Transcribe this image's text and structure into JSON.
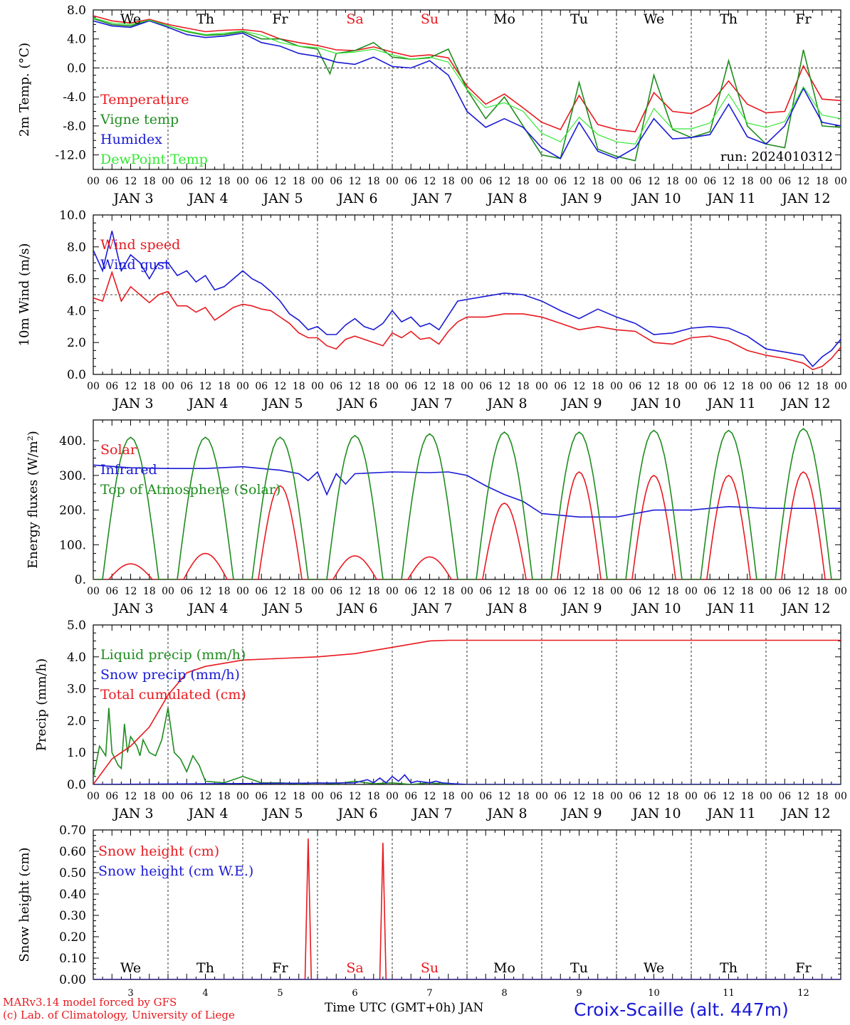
{
  "footer": {
    "credit1": "MARv3.14 model forced by GFS",
    "credit2": "(c) Lab. of Climatology, University of Liege",
    "xlabel": "Time UTC (GMT+0h) JAN",
    "station": "Croix-Scaille (alt. 447m)"
  },
  "run_label": "run: 2024010312",
  "days": {
    "weekday_labels": [
      "We",
      "Th",
      "Fr",
      "Sa",
      "Su",
      "Mo",
      "Tu",
      "We",
      "Th",
      "Fr"
    ],
    "weekend_flags": [
      false,
      false,
      false,
      true,
      true,
      false,
      false,
      false,
      false,
      false
    ],
    "date_labels": [
      "JAN  3",
      "JAN  4",
      "JAN  5",
      "JAN  6",
      "JAN  7",
      "JAN  8",
      "JAN  9",
      "JAN 10",
      "JAN 11",
      "JAN 12"
    ],
    "short_dates": [
      "3",
      "4",
      "5",
      "6",
      "7",
      "8",
      "9",
      "10",
      "11",
      "12"
    ],
    "hour_ticks": [
      "00",
      "06",
      "12",
      "18"
    ],
    "last_tick": "00"
  },
  "colors": {
    "red": "#e8191f",
    "green": "#1f8c1f",
    "blue": "#1a1ad6",
    "lightgreen": "#33e833",
    "weekend": "#e8191f",
    "grid": "#000000"
  },
  "chart_data": [
    {
      "type": "line",
      "ylabel": "2m Temp. (°C)",
      "ylim": [
        -14,
        8
      ],
      "yticks": [
        "8.0",
        "4.0",
        "0.0",
        "-4.0",
        "-8.0",
        "-12.0"
      ],
      "yticks_values": [
        8,
        4,
        0,
        -4,
        -8,
        -12
      ],
      "x_unit": "hours since JAN 3 00 UTC",
      "hline": 0,
      "series": [
        {
          "name": "Temperature",
          "color": "red",
          "x": [
            0,
            6,
            12,
            18,
            24,
            30,
            36,
            42,
            48,
            54,
            60,
            66,
            72,
            78,
            84,
            90,
            96,
            102,
            108,
            114,
            120,
            126,
            132,
            138,
            144,
            150,
            156,
            162,
            168,
            174,
            180,
            186,
            192,
            198,
            204,
            210,
            216,
            222,
            228,
            234,
            240
          ],
          "y": [
            7.2,
            6.5,
            6.2,
            6.7,
            6.0,
            5.5,
            5.0,
            5.2,
            5.3,
            5.0,
            4.0,
            3.5,
            3.1,
            2.5,
            2.4,
            2.9,
            2.2,
            1.6,
            1.8,
            1.4,
            -2.5,
            -5.0,
            -3.6,
            -5.5,
            -7.5,
            -8.5,
            -3.8,
            -7.8,
            -8.5,
            -8.8,
            -3.4,
            -6.0,
            -6.3,
            -5.0,
            -1.8,
            -5.0,
            -6.2,
            -6.0,
            0.3,
            -4.3,
            -4.5
          ]
        },
        {
          "name": "Vigne temp",
          "color": "green",
          "x": [
            0,
            6,
            12,
            18,
            24,
            30,
            36,
            42,
            48,
            54,
            60,
            66,
            72,
            76,
            78,
            84,
            90,
            96,
            102,
            108,
            114,
            120,
            126,
            132,
            138,
            144,
            150,
            156,
            162,
            168,
            174,
            180,
            186,
            192,
            198,
            204,
            210,
            216,
            222,
            228,
            234,
            240
          ],
          "y": [
            6.8,
            6.0,
            5.8,
            6.6,
            5.8,
            5.0,
            4.5,
            4.6,
            5.0,
            4.0,
            4.0,
            3.0,
            2.6,
            -0.8,
            2.0,
            2.4,
            3.5,
            1.5,
            1.2,
            1.4,
            2.6,
            -3.0,
            -7.0,
            -4.0,
            -8.0,
            -12.0,
            -12.5,
            -2.0,
            -11.2,
            -12.2,
            -12.8,
            -1.0,
            -8.5,
            -9.6,
            -8.8,
            1.0,
            -8.0,
            -10.5,
            -11.0,
            2.5,
            -8.0,
            -8.2
          ]
        },
        {
          "name": "Humidex",
          "color": "blue",
          "x": [
            0,
            6,
            12,
            18,
            24,
            30,
            36,
            42,
            48,
            54,
            60,
            66,
            72,
            78,
            84,
            90,
            96,
            102,
            108,
            114,
            120,
            126,
            132,
            138,
            144,
            150,
            156,
            162,
            168,
            174,
            180,
            186,
            192,
            198,
            204,
            210,
            216,
            222,
            228,
            234,
            240
          ],
          "y": [
            6.5,
            5.8,
            5.6,
            6.5,
            5.6,
            4.6,
            4.2,
            4.4,
            4.8,
            3.5,
            3.0,
            2.0,
            1.6,
            0.8,
            0.5,
            1.5,
            0.2,
            0.0,
            1.0,
            -1.0,
            -6.0,
            -8.2,
            -7.0,
            -8.2,
            -11.0,
            -12.5,
            -7.5,
            -11.5,
            -12.5,
            -11.0,
            -7.0,
            -9.8,
            -9.6,
            -9.2,
            -5.0,
            -9.5,
            -10.5,
            -8.0,
            -2.8,
            -7.5,
            -8.0
          ]
        },
        {
          "name": "DewPoint Temp",
          "color": "lightgreen",
          "x": [
            0,
            6,
            12,
            18,
            24,
            30,
            36,
            42,
            48,
            54,
            60,
            66,
            72,
            78,
            84,
            90,
            96,
            102,
            108,
            114,
            120,
            126,
            132,
            138,
            144,
            150,
            156,
            162,
            168,
            174,
            180,
            186,
            192,
            198,
            204,
            210,
            216,
            222,
            228,
            234,
            240
          ],
          "y": [
            6.9,
            6.2,
            6.0,
            6.6,
            5.8,
            5.1,
            4.6,
            4.8,
            5.1,
            4.5,
            3.5,
            3.0,
            2.8,
            2.0,
            2.2,
            2.6,
            1.8,
            1.2,
            1.5,
            0.8,
            -3.0,
            -5.5,
            -4.8,
            -6.0,
            -9.0,
            -10.2,
            -6.8,
            -9.2,
            -10.2,
            -10.5,
            -5.6,
            -8.4,
            -8.4,
            -7.6,
            -3.6,
            -7.6,
            -8.2,
            -7.4,
            -2.6,
            -6.5,
            -7.0
          ]
        }
      ]
    },
    {
      "type": "line",
      "ylabel": "10m Wind (m/s)",
      "ylim": [
        0,
        10
      ],
      "yticks": [
        "10.0",
        "8.0",
        "6.0",
        "4.0",
        "2.0",
        "0.0"
      ],
      "yticks_values": [
        10,
        8,
        6,
        4,
        2,
        0
      ],
      "x_unit": "hours since JAN 3 00 UTC",
      "hline": 5,
      "series": [
        {
          "name": "Wind speed",
          "color": "red",
          "x": [
            0,
            3,
            6,
            9,
            12,
            15,
            18,
            21,
            24,
            27,
            30,
            33,
            36,
            39,
            42,
            45,
            48,
            51,
            54,
            57,
            60,
            63,
            66,
            69,
            72,
            75,
            78,
            81,
            84,
            87,
            90,
            93,
            96,
            99,
            102,
            105,
            108,
            111,
            114,
            117,
            120,
            126,
            132,
            138,
            144,
            150,
            156,
            162,
            168,
            174,
            180,
            186,
            192,
            198,
            204,
            210,
            216,
            222,
            228,
            231,
            234,
            237,
            240
          ],
          "y": [
            4.8,
            4.6,
            6.4,
            4.6,
            5.5,
            5.0,
            4.5,
            5.0,
            5.2,
            4.3,
            4.3,
            3.9,
            4.2,
            3.4,
            3.8,
            4.2,
            4.4,
            4.3,
            4.1,
            4.0,
            3.6,
            3.2,
            2.6,
            2.3,
            2.3,
            1.8,
            1.6,
            2.2,
            2.4,
            2.2,
            2.0,
            1.8,
            2.6,
            2.3,
            2.7,
            2.2,
            2.3,
            1.9,
            2.7,
            3.3,
            3.6,
            3.6,
            3.8,
            3.8,
            3.6,
            3.2,
            2.8,
            3.0,
            2.8,
            2.7,
            2.0,
            1.9,
            2.3,
            2.4,
            2.1,
            1.5,
            1.2,
            1.0,
            0.7,
            0.3,
            0.5,
            1.0,
            1.7
          ]
        },
        {
          "name": "Wind gust",
          "color": "blue",
          "x": [
            0,
            3,
            6,
            9,
            12,
            15,
            18,
            21,
            24,
            27,
            30,
            33,
            36,
            39,
            42,
            45,
            48,
            51,
            54,
            57,
            60,
            63,
            66,
            69,
            72,
            75,
            78,
            81,
            84,
            87,
            90,
            93,
            96,
            99,
            102,
            105,
            108,
            111,
            114,
            117,
            120,
            126,
            132,
            138,
            144,
            150,
            156,
            162,
            168,
            174,
            180,
            186,
            192,
            198,
            204,
            210,
            216,
            222,
            228,
            231,
            234,
            237,
            240
          ],
          "y": [
            7.8,
            6.5,
            9.0,
            6.5,
            7.5,
            7.0,
            6.0,
            7.0,
            7.0,
            6.2,
            6.5,
            5.8,
            6.2,
            5.3,
            5.5,
            6.0,
            6.5,
            6.0,
            5.7,
            5.2,
            4.6,
            3.8,
            3.4,
            2.8,
            3.0,
            2.5,
            2.5,
            3.1,
            3.5,
            3.0,
            2.8,
            3.2,
            4.0,
            3.3,
            3.6,
            3.0,
            3.2,
            2.8,
            3.7,
            4.6,
            4.7,
            4.9,
            5.1,
            5.0,
            4.6,
            4.0,
            3.5,
            4.1,
            3.6,
            3.2,
            2.5,
            2.6,
            2.9,
            3.0,
            2.9,
            2.4,
            1.6,
            1.4,
            1.2,
            0.5,
            1.1,
            1.5,
            2.2
          ]
        }
      ]
    },
    {
      "type": "line",
      "ylabel": "Energy fluxes (W/m²)",
      "ylim": [
        0,
        460
      ],
      "yticks": [
        "400.",
        "300.",
        "200.",
        "100.",
        "0."
      ],
      "yticks_values": [
        400,
        300,
        200,
        100,
        0
      ],
      "x_unit": "hours since JAN 3 00 UTC",
      "series": [
        {
          "name": "Solar",
          "color": "red",
          "daily_peak_hour": 12,
          "daily_peaks": [
            45,
            75,
            270,
            68,
            65,
            220,
            310,
            300,
            300,
            310
          ],
          "day_width_hours": 14
        },
        {
          "name": "Infrared",
          "color": "blue",
          "x": [
            0,
            12,
            24,
            36,
            48,
            60,
            66,
            69,
            72,
            75,
            78,
            81,
            84,
            96,
            108,
            114,
            120,
            126,
            132,
            138,
            144,
            156,
            168,
            180,
            192,
            204,
            216,
            228,
            240
          ],
          "y": [
            330,
            322,
            320,
            320,
            325,
            315,
            305,
            285,
            310,
            245,
            305,
            275,
            305,
            310,
            308,
            310,
            300,
            270,
            245,
            225,
            190,
            180,
            180,
            200,
            200,
            210,
            205,
            205,
            205
          ]
        },
        {
          "name": "Top of Atmosphere (Solar)",
          "color": "green",
          "daily_peak_hour": 12,
          "daily_peaks": [
            410,
            410,
            410,
            415,
            420,
            425,
            425,
            430,
            430,
            435
          ],
          "day_width_hours": 18
        }
      ]
    },
    {
      "type": "line",
      "ylabel": "Precip (mm/h)",
      "ylim": [
        0,
        5
      ],
      "yticks": [
        "5.0",
        "4.0",
        "3.0",
        "2.0",
        "1.0",
        "0.0"
      ],
      "yticks_values": [
        5,
        4,
        3,
        2,
        1,
        0
      ],
      "x_unit": "hours since JAN 3 00 UTC",
      "series": [
        {
          "name": "Liquid precip (mm/h)",
          "color": "green",
          "x": [
            0,
            2,
            4,
            5,
            6,
            8,
            9,
            10,
            11,
            12,
            14,
            15,
            16,
            18,
            20,
            22,
            24,
            26,
            28,
            30,
            32,
            34,
            36,
            42,
            48,
            54,
            60,
            66,
            72,
            78,
            84,
            90,
            96,
            102,
            108,
            114,
            120,
            240
          ],
          "y": [
            0.2,
            1.2,
            0.9,
            2.4,
            1.0,
            0.6,
            0.5,
            1.9,
            1.0,
            1.5,
            1.2,
            0.9,
            1.4,
            1.0,
            0.9,
            1.4,
            2.4,
            1.0,
            0.8,
            0.4,
            0.9,
            0.6,
            0.1,
            0.05,
            0.25,
            0.05,
            0.05,
            0.02,
            0.05,
            0.02,
            0.1,
            0.02,
            0.05,
            0.0,
            0.05,
            0.0,
            0.0,
            0.0
          ]
        },
        {
          "name": "Snow precip (mm/h)",
          "color": "blue",
          "x": [
            0,
            84,
            88,
            90,
            92,
            94,
            96,
            98,
            100,
            102,
            104,
            108,
            110,
            112,
            116,
            120,
            240
          ],
          "y": [
            0,
            0.05,
            0.15,
            0.05,
            0.2,
            0.05,
            0.25,
            0.1,
            0.3,
            0.05,
            0.1,
            0.05,
            0.1,
            0.05,
            0.02,
            0.0,
            0.0
          ]
        },
        {
          "name": "Total cumulated (cm)",
          "color": "red",
          "x": [
            0,
            6,
            12,
            18,
            24,
            30,
            36,
            42,
            48,
            60,
            72,
            84,
            96,
            102,
            108,
            114,
            120,
            130,
            140,
            160,
            200,
            240
          ],
          "y": [
            0,
            0.8,
            1.2,
            1.8,
            2.8,
            3.5,
            3.7,
            3.8,
            3.9,
            3.95,
            4.0,
            4.1,
            4.3,
            4.4,
            4.5,
            4.52,
            4.52,
            4.52,
            4.52,
            4.52,
            4.52,
            4.52
          ]
        }
      ]
    },
    {
      "type": "line",
      "ylabel": "Snow height (cm)",
      "ylim": [
        0,
        0.7
      ],
      "yticks": [
        "0.70",
        "0.60",
        "0.50",
        "0.40",
        "0.30",
        "0.20",
        "0.10",
        "0.00"
      ],
      "yticks_values": [
        0.7,
        0.6,
        0.5,
        0.4,
        0.3,
        0.2,
        0.1,
        0.0
      ],
      "x_unit": "hours since JAN 3 00 UTC",
      "series": [
        {
          "name": "Snow height (cm)",
          "color": "red",
          "x": [
            0,
            68,
            69,
            70,
            71,
            72,
            92,
            93,
            94,
            95,
            96,
            240
          ],
          "y": [
            0,
            0,
            0.66,
            0.0,
            0,
            0,
            0,
            0.64,
            0.0,
            0,
            0,
            0
          ]
        },
        {
          "name": "Snow height (cm W.E.)",
          "color": "blue",
          "x": [
            0,
            240
          ],
          "y": [
            0,
            0
          ]
        }
      ]
    }
  ]
}
